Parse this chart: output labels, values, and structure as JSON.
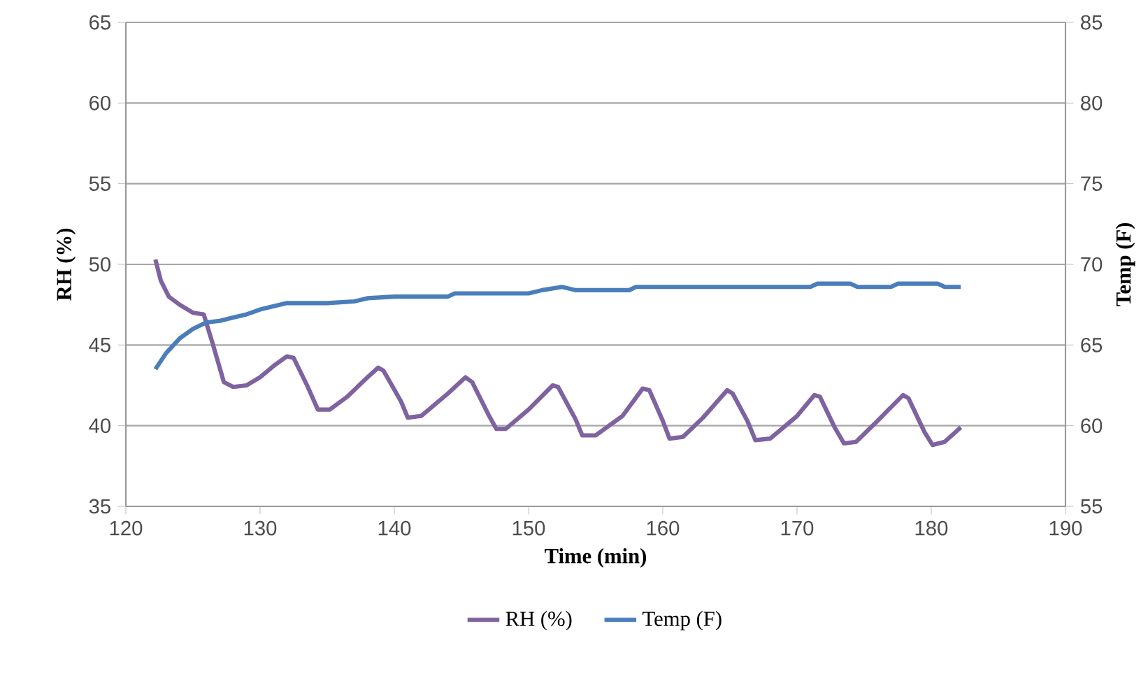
{
  "chart_data": {
    "type": "line",
    "xlabel": "Time (min)",
    "ylabel": "RH (%)",
    "y2label": "Temp (F)",
    "xlim": [
      120,
      190
    ],
    "xticks": [
      120,
      130,
      140,
      150,
      160,
      170,
      180,
      190
    ],
    "ylim": [
      35,
      65
    ],
    "yticks": [
      35,
      40,
      45,
      50,
      55,
      60,
      65
    ],
    "y2lim": [
      55,
      85
    ],
    "y2ticks": [
      55,
      60,
      65,
      70,
      75,
      80,
      85
    ],
    "grid": "y",
    "legend": "bottom",
    "series": [
      {
        "name": "RH (%)",
        "color": "#7f62a0",
        "axis": "y",
        "x": [
          122.2,
          122.6,
          123.2,
          124,
          125,
          125.8,
          126.5,
          127.3,
          128,
          129,
          130,
          131,
          132,
          132.5,
          133.5,
          134.3,
          135.2,
          136.5,
          138,
          138.8,
          139.2,
          140.5,
          141,
          142,
          144,
          145.3,
          145.8,
          147,
          147.6,
          148.3,
          150,
          151.8,
          152.2,
          153.5,
          154,
          155,
          157,
          158.5,
          159,
          160,
          160.5,
          161.5,
          163,
          164.8,
          165.2,
          166.3,
          166.9,
          168,
          170,
          171.3,
          171.7,
          172.8,
          173.5,
          174.4,
          176,
          177.9,
          178.3,
          179.5,
          180.1,
          181,
          182.2
        ],
        "values": [
          50.3,
          49.0,
          48.0,
          47.5,
          47.0,
          46.9,
          45.0,
          42.7,
          42.4,
          42.5,
          43.0,
          43.7,
          44.3,
          44.2,
          42.5,
          41.0,
          41.0,
          41.8,
          43.0,
          43.6,
          43.4,
          41.5,
          40.5,
          40.6,
          42.0,
          43.0,
          42.7,
          40.7,
          39.8,
          39.8,
          41.0,
          42.5,
          42.4,
          40.4,
          39.4,
          39.4,
          40.6,
          42.3,
          42.2,
          40.3,
          39.2,
          39.3,
          40.5,
          42.2,
          42.0,
          40.3,
          39.1,
          39.2,
          40.6,
          41.9,
          41.8,
          39.9,
          38.9,
          39.0,
          40.3,
          41.9,
          41.7,
          39.6,
          38.8,
          39.0,
          39.9
        ]
      },
      {
        "name": "Temp (F)",
        "color": "#4a7ebb",
        "axis": "y2",
        "x": [
          122.2,
          123,
          124,
          125,
          126,
          127,
          128,
          129,
          130,
          131,
          132,
          135,
          137,
          138,
          140,
          144,
          144.5,
          150,
          151,
          152.5,
          153.5,
          157.5,
          158,
          171,
          171.5,
          174,
          174.5,
          177,
          177.5,
          180.5,
          181,
          182.2
        ],
        "values": [
          63.5,
          64.5,
          65.4,
          66.0,
          66.4,
          66.5,
          66.7,
          66.9,
          67.2,
          67.4,
          67.6,
          67.6,
          67.7,
          67.9,
          68.0,
          68.0,
          68.2,
          68.2,
          68.4,
          68.6,
          68.4,
          68.4,
          68.6,
          68.6,
          68.8,
          68.8,
          68.6,
          68.6,
          68.8,
          68.8,
          68.6,
          68.6
        ]
      }
    ]
  }
}
